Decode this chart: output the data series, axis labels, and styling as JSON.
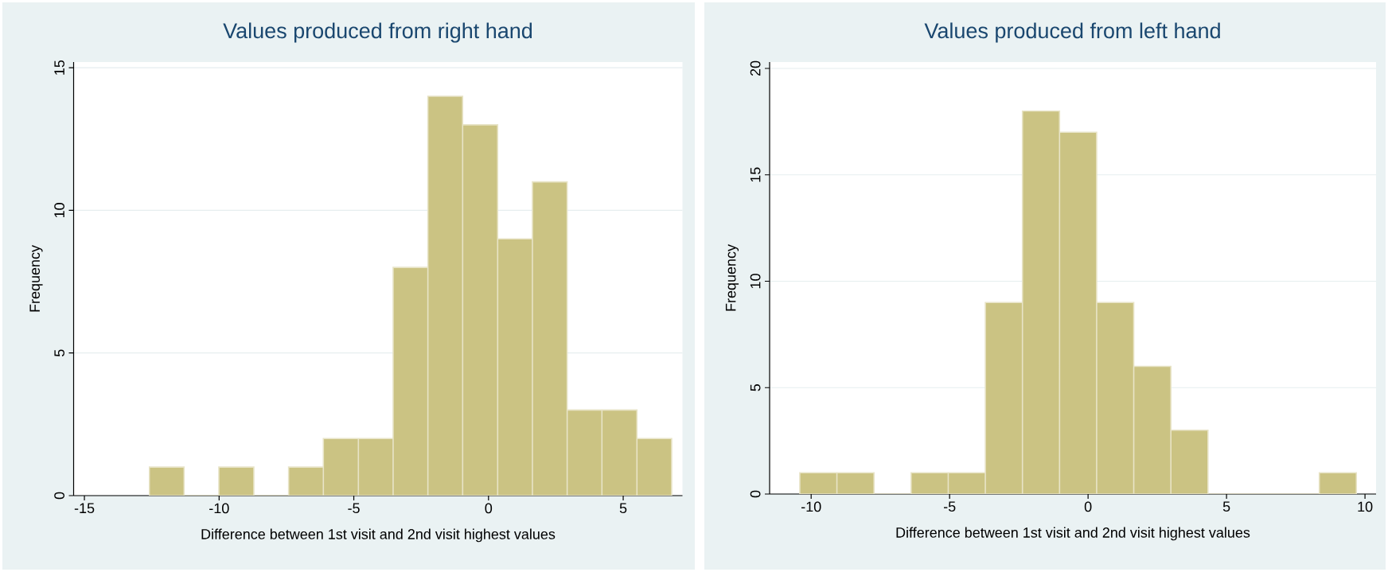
{
  "chart_data": [
    {
      "type": "histogram",
      "title": "Values produced from right hand",
      "xlabel": "Difference between 1st visit and 2nd visit highest values",
      "ylabel": "Frequency",
      "bins": [
        -12.59,
        -11.3,
        -10.01,
        -8.71,
        -7.42,
        -6.13,
        -4.83,
        -3.54,
        -2.25,
        -0.96,
        0.34,
        1.63,
        2.92,
        4.21,
        5.51,
        6.8
      ],
      "values": [
        1,
        0,
        1,
        0,
        1,
        2,
        2,
        8,
        14,
        13,
        9,
        11,
        3,
        3,
        2
      ],
      "color": "#cbc383",
      "xlim": [
        -15.4,
        7.2
      ],
      "ylim": [
        0,
        15.2
      ],
      "xticks": [
        -15,
        -10,
        -5,
        0,
        5
      ],
      "yticks": [
        0,
        5,
        10,
        15
      ],
      "grid": "y"
    },
    {
      "type": "histogram",
      "title": "Values produced from left hand",
      "xlabel": "Difference between 1st visit and 2nd visit highest values",
      "ylabel": "Frequency",
      "bins": [
        -10.41,
        -9.07,
        -7.73,
        -6.39,
        -5.05,
        -3.71,
        -2.37,
        -1.03,
        0.31,
        1.65,
        2.99,
        4.33,
        5.67,
        7.01,
        8.35,
        9.69
      ],
      "values": [
        1,
        1,
        0,
        1,
        1,
        9,
        18,
        17,
        9,
        6,
        3,
        0,
        0,
        0,
        1
      ],
      "color": "#cbc383",
      "xlim": [
        -11.5,
        10.4
      ],
      "ylim": [
        0,
        20.3
      ],
      "xticks": [
        -10,
        -5,
        0,
        5,
        10
      ],
      "yticks": [
        0,
        5,
        10,
        15,
        20
      ],
      "grid": "y"
    }
  ]
}
